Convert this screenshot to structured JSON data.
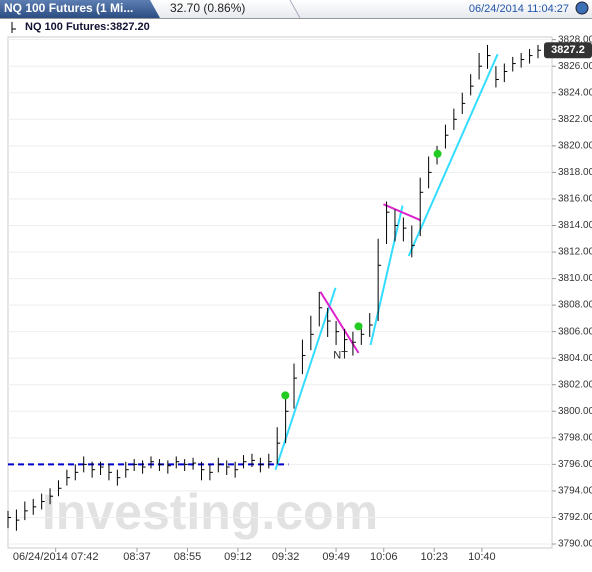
{
  "header": {
    "tab": "NQ 100 Futures (1 Mi...",
    "change": "32.70 (0.86%)",
    "datetime": "06/24/2014 11:04:27"
  },
  "chart_data": {
    "type": "ohlc",
    "legend_text": "NQ 100 Futures:3827.20",
    "watermark": "Investing.com",
    "color": "#000000",
    "x": [
      0,
      3,
      6,
      9,
      12,
      15,
      18,
      21,
      24,
      27,
      30,
      33,
      36,
      39,
      42,
      45,
      48,
      51,
      54,
      57,
      60,
      63,
      66,
      69,
      72,
      75,
      78,
      81,
      84,
      87,
      90,
      93,
      96,
      99,
      102,
      105,
      108,
      111,
      114,
      117,
      120,
      123,
      126,
      129,
      132,
      135,
      138,
      141,
      144,
      147,
      150,
      153,
      156,
      159,
      162,
      165,
      168,
      171,
      174,
      177,
      180,
      183,
      186,
      189
    ],
    "series": [
      {
        "name": "high",
        "values": [
          3792.5,
          3792.6,
          3793.2,
          3793.4,
          3793.8,
          3794.2,
          3794.8,
          3795.6,
          3796.0,
          3796.6,
          3796.2,
          3796.2,
          3796.0,
          3795.6,
          3796.2,
          3796.4,
          3796.3,
          3796.6,
          3796.4,
          3796.3,
          3796.6,
          3796.4,
          3796.5,
          3796.2,
          3796.0,
          3796.5,
          3796.3,
          3796.2,
          3796.7,
          3796.8,
          3796.5,
          3796.8,
          3798.8,
          3801.2,
          3803.6,
          3805.4,
          3807.2,
          3809.0,
          3807.8,
          3806.8,
          3806.2,
          3806.0,
          3806.6,
          3807.4,
          3813.0,
          3815.8,
          3815.2,
          3814.6,
          3814.0,
          3817.6,
          3819.2,
          3820.0,
          3821.6,
          3822.8,
          3824.0,
          3825.4,
          3827.0,
          3827.6,
          3826.0,
          3826.2,
          3826.7,
          3827.0,
          3827.3,
          3827.6
        ]
      },
      {
        "name": "low",
        "values": [
          3791.2,
          3791.0,
          3791.8,
          3792.2,
          3792.6,
          3793.0,
          3793.6,
          3794.4,
          3794.8,
          3795.4,
          3795.0,
          3795.2,
          3794.8,
          3794.4,
          3795.0,
          3795.5,
          3795.3,
          3795.7,
          3795.5,
          3795.3,
          3795.7,
          3795.5,
          3795.6,
          3794.8,
          3794.8,
          3795.4,
          3795.2,
          3795.0,
          3795.7,
          3795.8,
          3795.4,
          3795.7,
          3796.0,
          3797.6,
          3800.2,
          3802.8,
          3804.6,
          3806.4,
          3805.6,
          3805.0,
          3804.4,
          3804.2,
          3805.0,
          3805.6,
          3806.8,
          3812.6,
          3812.8,
          3812.8,
          3811.6,
          3813.2,
          3816.8,
          3818.6,
          3819.8,
          3821.2,
          3822.4,
          3823.8,
          3825.0,
          3825.8,
          3824.4,
          3824.8,
          3825.6,
          3825.9,
          3826.2,
          3826.6
        ]
      },
      {
        "name": "close",
        "values": [
          3792.0,
          3791.8,
          3792.5,
          3792.8,
          3793.2,
          3793.6,
          3794.2,
          3795.0,
          3795.4,
          3796.0,
          3795.6,
          3795.8,
          3795.4,
          3795.0,
          3795.6,
          3796.0,
          3795.8,
          3796.2,
          3796.0,
          3795.9,
          3796.2,
          3796.0,
          3796.1,
          3795.6,
          3795.4,
          3796.0,
          3795.8,
          3795.6,
          3796.2,
          3796.3,
          3796.0,
          3796.2,
          3797.6,
          3800.0,
          3802.5,
          3804.2,
          3805.8,
          3807.8,
          3806.8,
          3806.0,
          3805.4,
          3805.2,
          3805.8,
          3806.5,
          3811.0,
          3815.0,
          3814.0,
          3813.8,
          3812.5,
          3816.5,
          3818.0,
          3819.5,
          3820.8,
          3822.0,
          3823.2,
          3824.5,
          3826.0,
          3826.8,
          3825.0,
          3825.6,
          3826.2,
          3826.5,
          3826.8,
          3827.2
        ]
      }
    ],
    "xlim": [
      0,
      194
    ],
    "xticks": [
      {
        "value": 17,
        "label": "06/24/2014 07:42"
      },
      {
        "value": 46,
        "label": "08:37"
      },
      {
        "value": 64,
        "label": "08:55"
      },
      {
        "value": 82,
        "label": "09:12"
      },
      {
        "value": 99,
        "label": "09:32"
      },
      {
        "value": 117,
        "label": "09:49"
      },
      {
        "value": 134,
        "label": "10:06"
      },
      {
        "value": 152,
        "label": "10:23"
      },
      {
        "value": 169,
        "label": "10:40"
      }
    ],
    "ylim": [
      3789.7,
      3828.2
    ],
    "yticks": [
      {
        "value": 3790,
        "label": "3790.00"
      },
      {
        "value": 3792,
        "label": "3792.00"
      },
      {
        "value": 3794,
        "label": "3794.00"
      },
      {
        "value": 3796,
        "label": "3796.00"
      },
      {
        "value": 3798,
        "label": "3798.00"
      },
      {
        "value": 3800,
        "label": "3800.00"
      },
      {
        "value": 3802,
        "label": "3802.00"
      },
      {
        "value": 3804,
        "label": "3804.00"
      },
      {
        "value": 3806,
        "label": "3806.00"
      },
      {
        "value": 3808,
        "label": "3808.00"
      },
      {
        "value": 3810,
        "label": "3810.00"
      },
      {
        "value": 3812,
        "label": "3812.00"
      },
      {
        "value": 3814,
        "label": "3814.00"
      },
      {
        "value": 3816,
        "label": "3816.00"
      },
      {
        "value": 3818,
        "label": "3818.00"
      },
      {
        "value": 3820,
        "label": "3820.00"
      },
      {
        "value": 3822,
        "label": "3822.00"
      },
      {
        "value": 3824,
        "label": "3824.00"
      },
      {
        "value": 3826,
        "label": "3826.00"
      },
      {
        "value": 3828,
        "label": "3828.00"
      }
    ],
    "grid": true,
    "lines": [
      {
        "color": "#0000cc",
        "dashed": true,
        "x": [
          0,
          100
        ],
        "y": [
          3796,
          3796
        ]
      },
      {
        "color": "#33ddff",
        "dashed": false,
        "x": [
          95.4,
          116.8
        ],
        "y": [
          3795.6,
          3809.3
        ]
      },
      {
        "color": "#dd22cc",
        "dashed": false,
        "x": [
          111.4,
          125
        ],
        "y": [
          3809.0,
          3804.4
        ]
      },
      {
        "color": "#33ddff",
        "dashed": false,
        "x": [
          129.3,
          140.7
        ],
        "y": [
          3805.0,
          3815.5
        ]
      },
      {
        "color": "#dd22cc",
        "dashed": false,
        "x": [
          133.9,
          147.1
        ],
        "y": [
          3815.6,
          3814.4
        ]
      },
      {
        "color": "#33ddff",
        "dashed": false,
        "x": [
          142.9,
          174.6
        ],
        "y": [
          3811.7,
          3826.9
        ]
      }
    ],
    "dots": {
      "color": "#22cc22",
      "x": [
        98.9,
        125,
        153.2
      ],
      "y": [
        3801.2,
        3806.4,
        3819.4
      ]
    },
    "note": {
      "text": "NT",
      "x": 118.6,
      "y": 3804.2
    }
  }
}
